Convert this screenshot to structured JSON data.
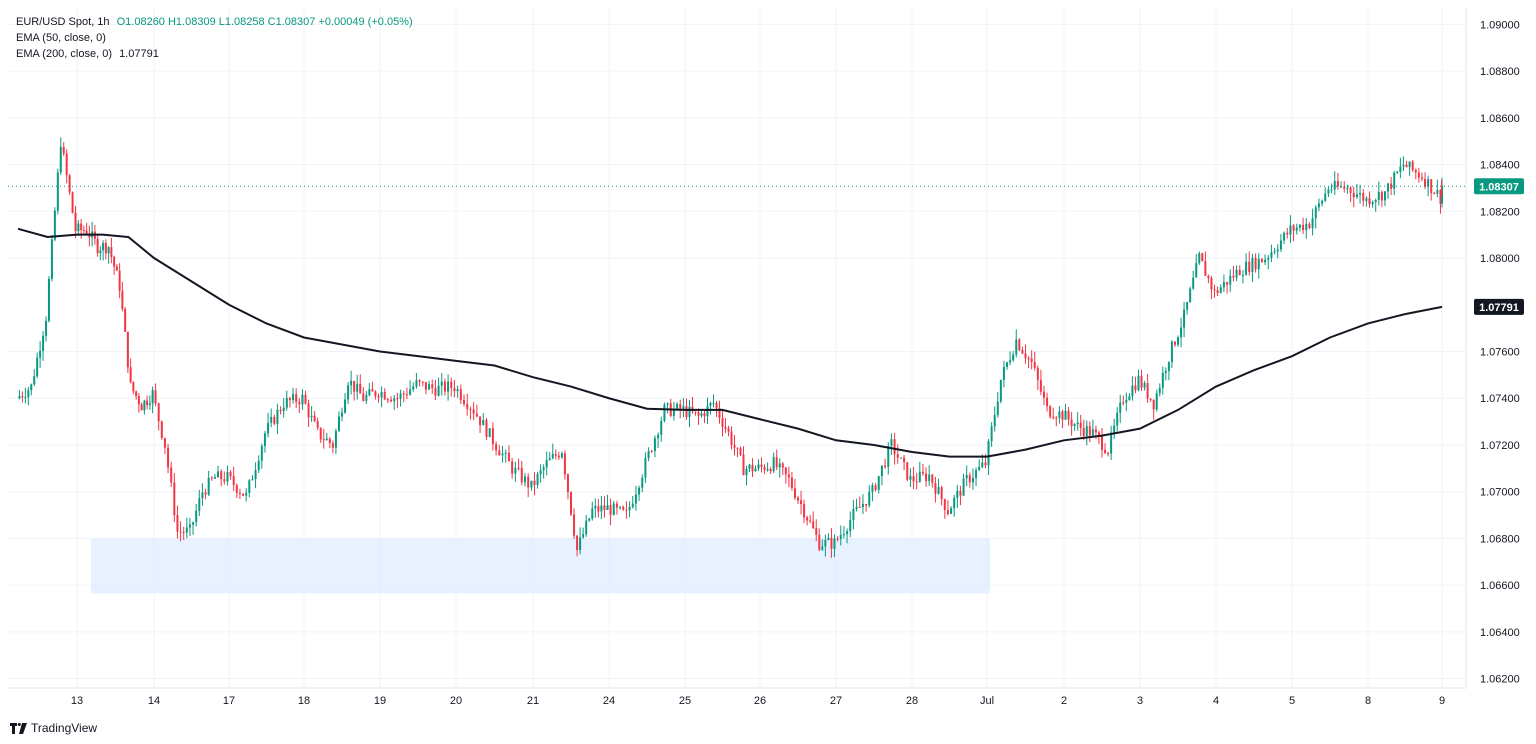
{
  "header": {
    "symbol": "EUR/USD Spot, 1h",
    "ohlc": "O1.08260 H1.08309 L1.08258 C1.08307 +0.00049 (+0.05%)",
    "ema50_label": "EMA (50, close, 0)",
    "ema200_label": "EMA (200, close, 0)",
    "ema200_value": "1.07791"
  },
  "brand": "TradingView",
  "colors": {
    "up": "#089981",
    "down": "#f23645",
    "ema200": "#131722",
    "zone": "#dbe9ff",
    "grid": "#f0f3fa",
    "axis_text": "#131722"
  },
  "chart_data": {
    "type": "candlestick",
    "x_ticks": [
      "13",
      "14",
      "17",
      "18",
      "19",
      "20",
      "21",
      "24",
      "25",
      "26",
      "27",
      "28",
      "Jul",
      "2",
      "3",
      "4",
      "5",
      "8",
      "9"
    ],
    "y_ticks": [
      "1.09000",
      "1.08800",
      "1.08600",
      "1.08400",
      "1.08200",
      "1.08000",
      "1.07600",
      "1.07400",
      "1.07200",
      "1.07000",
      "1.06800",
      "1.06600",
      "1.06400",
      "1.06200"
    ],
    "ylim": [
      1.0616,
      1.0907
    ],
    "last_price": 1.08307,
    "last_price_label": "1.08307",
    "ema200_label": "1.07791",
    "support_zone": {
      "from": "13",
      "to": "Jul",
      "low": 1.06565,
      "high": 1.068
    },
    "price_path": [
      [
        "12",
        1.074
      ],
      [
        "12",
        1.0745
      ],
      [
        "12",
        1.0775
      ],
      [
        "12",
        1.085
      ],
      [
        "13",
        1.0812
      ],
      [
        "13",
        1.0812
      ],
      [
        "13",
        1.0805
      ],
      [
        "13",
        1.0805
      ],
      [
        "13",
        1.0788
      ],
      [
        "13",
        1.0745
      ],
      [
        "13",
        1.0737
      ],
      [
        "14",
        1.0742
      ],
      [
        "14",
        1.072
      ],
      [
        "14",
        1.0683
      ],
      [
        "14",
        1.0683
      ],
      [
        "14",
        1.07
      ],
      [
        "14",
        1.0706
      ],
      [
        "17",
        1.0706
      ],
      [
        "17",
        1.0698
      ],
      [
        "17",
        1.0725
      ],
      [
        "17",
        1.0738
      ],
      [
        "18",
        1.074
      ],
      [
        "18",
        1.0725
      ],
      [
        "18",
        1.072
      ],
      [
        "18",
        1.0748
      ],
      [
        "18",
        1.074
      ],
      [
        "19",
        1.0743
      ],
      [
        "19",
        1.074
      ],
      [
        "19",
        1.0746
      ],
      [
        "19",
        1.0744
      ],
      [
        "20",
        1.0745
      ],
      [
        "20",
        1.0735
      ],
      [
        "20",
        1.0722
      ],
      [
        "20",
        1.071
      ],
      [
        "21",
        1.0702
      ],
      [
        "21",
        1.0712
      ],
      [
        "21",
        1.0718
      ],
      [
        "21",
        1.0675
      ],
      [
        "21",
        1.0692
      ],
      [
        "24",
        1.0693
      ],
      [
        "24",
        1.069
      ],
      [
        "24",
        1.0712
      ],
      [
        "24",
        1.0735
      ],
      [
        "25",
        1.0735
      ],
      [
        "25",
        1.0732
      ],
      [
        "25",
        1.0738
      ],
      [
        "25",
        1.0725
      ],
      [
        "25",
        1.071
      ],
      [
        "26",
        1.071
      ],
      [
        "26",
        1.0712
      ],
      [
        "26",
        1.0705
      ],
      [
        "26",
        1.0692
      ],
      [
        "26",
        1.0678
      ],
      [
        "27",
        1.0678
      ],
      [
        "27",
        1.069
      ],
      [
        "27",
        1.07
      ],
      [
        "27",
        1.072
      ],
      [
        "28",
        1.0705
      ],
      [
        "28",
        1.0707
      ],
      [
        "28",
        1.0692
      ],
      [
        "28",
        1.0705
      ],
      [
        "Jul",
        1.0712
      ],
      [
        "Jul",
        1.0748
      ],
      [
        "Jul",
        1.0765
      ],
      [
        "Jul",
        1.0755
      ],
      [
        "Jul",
        1.0735
      ],
      [
        "2",
        1.0733
      ],
      [
        "2",
        1.0728
      ],
      [
        "2",
        1.0725
      ],
      [
        "2",
        1.0718
      ],
      [
        "2",
        1.074
      ],
      [
        "3",
        1.0748
      ],
      [
        "3",
        1.0738
      ],
      [
        "3",
        1.0758
      ],
      [
        "3",
        1.0775
      ],
      [
        "3",
        1.08
      ],
      [
        "4",
        1.0785
      ],
      [
        "4",
        1.0795
      ],
      [
        "4",
        1.08
      ],
      [
        "5",
        1.0812
      ],
      [
        "5",
        1.0815
      ],
      [
        "5",
        1.083
      ],
      [
        "5",
        1.083
      ],
      [
        "8",
        1.0825
      ],
      [
        "8",
        1.0828
      ],
      [
        "8",
        1.084
      ],
      [
        "8",
        1.0835
      ],
      [
        "9",
        1.0826
      ],
      [
        "9",
        1.0831
      ]
    ],
    "ema200": [
      [
        "12",
        1.08125
      ],
      [
        "12",
        1.0809
      ],
      [
        "13",
        1.081
      ],
      [
        "13",
        1.081
      ],
      [
        "13",
        1.0809
      ],
      [
        "14",
        1.08
      ],
      [
        "14",
        1.079
      ],
      [
        "17",
        1.078
      ],
      [
        "17",
        1.0772
      ],
      [
        "18",
        1.0766
      ],
      [
        "18",
        1.0763
      ],
      [
        "19",
        1.076
      ],
      [
        "19",
        1.0758
      ],
      [
        "20",
        1.0756
      ],
      [
        "20",
        1.0754
      ],
      [
        "21",
        1.0749
      ],
      [
        "21",
        1.0745
      ],
      [
        "24",
        1.074
      ],
      [
        "24",
        1.07355
      ],
      [
        "25",
        1.0735
      ],
      [
        "25",
        1.0735
      ],
      [
        "26",
        1.0731
      ],
      [
        "26",
        1.0727
      ],
      [
        "27",
        1.0722
      ],
      [
        "27",
        1.072
      ],
      [
        "28",
        1.0717
      ],
      [
        "28",
        1.0715
      ],
      [
        "Jul",
        1.0715
      ],
      [
        "Jul",
        1.0718
      ],
      [
        "2",
        1.0722
      ],
      [
        "2",
        1.0724
      ],
      [
        "3",
        1.0727
      ],
      [
        "3",
        1.0735
      ],
      [
        "4",
        1.0745
      ],
      [
        "4",
        1.0752
      ],
      [
        "5",
        1.0758
      ],
      [
        "5",
        1.0766
      ],
      [
        "8",
        1.0772
      ],
      [
        "8",
        1.0776
      ],
      [
        "9",
        1.07791
      ]
    ]
  }
}
